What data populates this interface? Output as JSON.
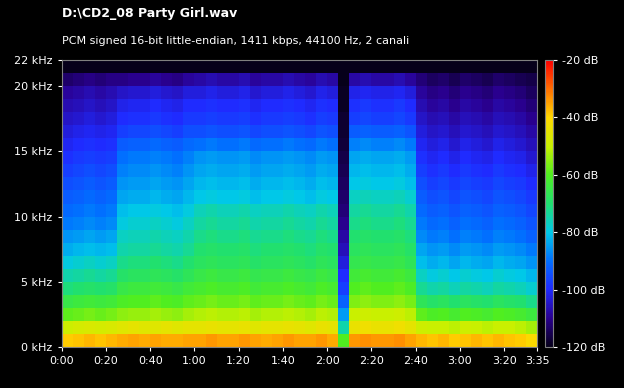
{
  "chart_data": {
    "type": "heatmap",
    "title": "D:\\CD2_08 Party Girl.wav",
    "subtitle": "PCM signed 16-bit little-endian, 1411 kbps, 44100 Hz, 2 canali",
    "xlim": [
      0,
      215
    ],
    "ylim": [
      0,
      22
    ],
    "xticks": [
      {
        "value": 0,
        "label": "0:00"
      },
      {
        "value": 20,
        "label": "0:20"
      },
      {
        "value": 40,
        "label": "0:40"
      },
      {
        "value": 60,
        "label": "1:00"
      },
      {
        "value": 80,
        "label": "1:20"
      },
      {
        "value": 100,
        "label": "1:40"
      },
      {
        "value": 120,
        "label": "2:00"
      },
      {
        "value": 140,
        "label": "2:20"
      },
      {
        "value": 160,
        "label": "2:40"
      },
      {
        "value": 180,
        "label": "3:00"
      },
      {
        "value": 200,
        "label": "3:20"
      },
      {
        "value": 215,
        "label": "3:35"
      }
    ],
    "yticks": [
      {
        "value": 0,
        "label": "0 kHz"
      },
      {
        "value": 5,
        "label": "5 kHz"
      },
      {
        "value": 10,
        "label": "10 kHz"
      },
      {
        "value": 15,
        "label": "15 kHz"
      },
      {
        "value": 20,
        "label": "20 kHz"
      },
      {
        "value": 22,
        "label": "22 kHz"
      }
    ],
    "x_bins": [
      0,
      5,
      10,
      15,
      20,
      25,
      30,
      35,
      40,
      45,
      50,
      55,
      60,
      65,
      70,
      75,
      80,
      85,
      90,
      95,
      100,
      105,
      110,
      115,
      120,
      125,
      130,
      135,
      140,
      145,
      150,
      155,
      160,
      165,
      170,
      175,
      180,
      185,
      190,
      195,
      200,
      205,
      210,
      215
    ],
    "y_bins": [
      0,
      1,
      2,
      3,
      4,
      5,
      6,
      7,
      8,
      9,
      10,
      11,
      12,
      13,
      14,
      15,
      16,
      17,
      18,
      19,
      20,
      21,
      22
    ],
    "colorbar": {
      "range": [
        -120,
        -20
      ],
      "ticks": [
        {
          "value": -20,
          "label": "-20 dB"
        },
        {
          "value": -40,
          "label": "-40 dB"
        },
        {
          "value": -60,
          "label": "-60 dB"
        },
        {
          "value": -80,
          "label": "-80 dB"
        },
        {
          "value": -100,
          "label": "-100 dB"
        },
        {
          "value": -120,
          "label": "-120 dB"
        }
      ]
    },
    "cells": [
      [
        -39,
        -38,
        -37,
        -38,
        -37,
        -36,
        -35,
        -36,
        -35,
        -36,
        -36,
        -35,
        -35,
        -34,
        -35,
        -35,
        -34,
        -35,
        -36,
        -35,
        -34,
        -35,
        -35,
        -34,
        -36,
        -60,
        -34,
        -33,
        -34,
        -34,
        -33,
        -35,
        -37,
        -38,
        -37,
        -39,
        -38,
        -37,
        -38,
        -37,
        -38,
        -39,
        -41
      ],
      [
        -49,
        -48,
        -47,
        -48,
        -47,
        -46,
        -45,
        -46,
        -46,
        -45,
        -46,
        -45,
        -45,
        -44,
        -45,
        -45,
        -44,
        -46,
        -45,
        -45,
        -44,
        -45,
        -46,
        -44,
        -45,
        -75,
        -44,
        -43,
        -44,
        -44,
        -43,
        -45,
        -49,
        -50,
        -50,
        -51,
        -49,
        -50,
        -51,
        -50,
        -50,
        -51,
        -53
      ],
      [
        -59,
        -58,
        -57,
        -58,
        -57,
        -55,
        -54,
        -54,
        -53,
        -54,
        -55,
        -53,
        -52,
        -51,
        -52,
        -52,
        -51,
        -53,
        -52,
        -52,
        -51,
        -52,
        -53,
        -51,
        -52,
        -85,
        -50,
        -49,
        -50,
        -50,
        -49,
        -51,
        -59,
        -61,
        -60,
        -62,
        -60,
        -61,
        -62,
        -60,
        -61,
        -62,
        -64
      ],
      [
        -65,
        -64,
        -63,
        -64,
        -63,
        -61,
        -60,
        -60,
        -59,
        -60,
        -61,
        -59,
        -58,
        -57,
        -58,
        -58,
        -57,
        -59,
        -58,
        -58,
        -57,
        -58,
        -59,
        -57,
        -58,
        -92,
        -56,
        -55,
        -56,
        -56,
        -55,
        -57,
        -67,
        -69,
        -68,
        -70,
        -68,
        -69,
        -70,
        -68,
        -69,
        -70,
        -72
      ],
      [
        -71,
        -70,
        -69,
        -70,
        -69,
        -65,
        -64,
        -64,
        -63,
        -64,
        -65,
        -63,
        -62,
        -61,
        -62,
        -62,
        -61,
        -63,
        -62,
        -62,
        -61,
        -62,
        -63,
        -61,
        -62,
        -97,
        -60,
        -59,
        -60,
        -60,
        -59,
        -61,
        -73,
        -75,
        -74,
        -76,
        -74,
        -75,
        -76,
        -74,
        -75,
        -76,
        -78
      ],
      [
        -75,
        -74,
        -73,
        -74,
        -73,
        -69,
        -68,
        -68,
        -67,
        -68,
        -69,
        -67,
        -65,
        -64,
        -65,
        -65,
        -64,
        -66,
        -65,
        -65,
        -64,
        -65,
        -66,
        -64,
        -65,
        -100,
        -63,
        -62,
        -63,
        -63,
        -62,
        -64,
        -77,
        -79,
        -78,
        -80,
        -78,
        -79,
        -80,
        -78,
        -79,
        -80,
        -82
      ],
      [
        -79,
        -78,
        -77,
        -78,
        -77,
        -72,
        -71,
        -71,
        -70,
        -71,
        -72,
        -70,
        -68,
        -67,
        -68,
        -68,
        -67,
        -69,
        -68,
        -68,
        -67,
        -68,
        -69,
        -67,
        -68,
        -103,
        -66,
        -65,
        -66,
        -66,
        -65,
        -67,
        -81,
        -83,
        -82,
        -84,
        -82,
        -83,
        -84,
        -82,
        -83,
        -84,
        -86
      ],
      [
        -83,
        -82,
        -81,
        -82,
        -81,
        -75,
        -74,
        -74,
        -73,
        -74,
        -75,
        -73,
        -70,
        -69,
        -70,
        -70,
        -69,
        -71,
        -70,
        -70,
        -69,
        -70,
        -71,
        -69,
        -70,
        -106,
        -68,
        -67,
        -68,
        -68,
        -67,
        -69,
        -84,
        -86,
        -85,
        -87,
        -85,
        -86,
        -87,
        -85,
        -86,
        -87,
        -89
      ],
      [
        -86,
        -85,
        -84,
        -85,
        -84,
        -77,
        -76,
        -76,
        -75,
        -76,
        -77,
        -75,
        -72,
        -71,
        -72,
        -72,
        -71,
        -73,
        -72,
        -72,
        -71,
        -72,
        -73,
        -71,
        -72,
        -108,
        -70,
        -69,
        -70,
        -70,
        -69,
        -71,
        -87,
        -89,
        -88,
        -90,
        -88,
        -89,
        -90,
        -88,
        -89,
        -90,
        -92
      ],
      [
        -89,
        -88,
        -87,
        -88,
        -87,
        -79,
        -78,
        -78,
        -77,
        -78,
        -79,
        -77,
        -74,
        -73,
        -74,
        -74,
        -73,
        -75,
        -74,
        -74,
        -73,
        -74,
        -75,
        -73,
        -74,
        -110,
        -72,
        -71,
        -72,
        -72,
        -71,
        -73,
        -89,
        -91,
        -90,
        -92,
        -90,
        -91,
        -92,
        -90,
        -91,
        -92,
        -94
      ],
      [
        -91,
        -90,
        -89,
        -90,
        -89,
        -81,
        -80,
        -80,
        -79,
        -80,
        -81,
        -79,
        -76,
        -75,
        -76,
        -76,
        -75,
        -77,
        -76,
        -76,
        -75,
        -76,
        -77,
        -75,
        -76,
        -112,
        -74,
        -73,
        -74,
        -74,
        -73,
        -75,
        -91,
        -93,
        -92,
        -94,
        -92,
        -93,
        -94,
        -92,
        -93,
        -94,
        -96
      ],
      [
        -93,
        -92,
        -91,
        -92,
        -91,
        -84,
        -83,
        -83,
        -82,
        -83,
        -84,
        -82,
        -80,
        -79,
        -80,
        -80,
        -79,
        -81,
        -80,
        -80,
        -79,
        -80,
        -81,
        -79,
        -80,
        -113,
        -77,
        -76,
        -77,
        -77,
        -76,
        -78,
        -93,
        -95,
        -94,
        -96,
        -94,
        -95,
        -96,
        -94,
        -95,
        -96,
        -98
      ],
      [
        -95,
        -94,
        -93,
        -94,
        -93,
        -86,
        -85,
        -85,
        -84,
        -85,
        -86,
        -84,
        -82,
        -81,
        -82,
        -82,
        -81,
        -83,
        -82,
        -82,
        -81,
        -82,
        -83,
        -81,
        -82,
        -114,
        -80,
        -79,
        -80,
        -80,
        -79,
        -81,
        -95,
        -97,
        -96,
        -98,
        -96,
        -97,
        -98,
        -96,
        -97,
        -98,
        -100
      ],
      [
        -97,
        -96,
        -95,
        -96,
        -95,
        -88,
        -87,
        -87,
        -86,
        -87,
        -88,
        -86,
        -84,
        -83,
        -84,
        -84,
        -83,
        -85,
        -84,
        -84,
        -83,
        -84,
        -85,
        -83,
        -84,
        -115,
        -82,
        -81,
        -82,
        -82,
        -81,
        -83,
        -97,
        -99,
        -98,
        -100,
        -98,
        -99,
        -100,
        -98,
        -99,
        -100,
        -102
      ],
      [
        -99,
        -98,
        -97,
        -98,
        -97,
        -90,
        -89,
        -89,
        -88,
        -89,
        -90,
        -88,
        -86,
        -85,
        -86,
        -86,
        -85,
        -87,
        -86,
        -86,
        -85,
        -86,
        -87,
        -85,
        -86,
        -116,
        -84,
        -83,
        -84,
        -84,
        -83,
        -85,
        -99,
        -101,
        -100,
        -102,
        -100,
        -101,
        -102,
        -100,
        -101,
        -102,
        -104
      ],
      [
        -101,
        -100,
        -99,
        -100,
        -99,
        -93,
        -92,
        -92,
        -91,
        -92,
        -93,
        -91,
        -90,
        -89,
        -90,
        -90,
        -89,
        -91,
        -90,
        -90,
        -89,
        -90,
        -91,
        -89,
        -90,
        -117,
        -88,
        -87,
        -88,
        -88,
        -87,
        -89,
        -101,
        -103,
        -102,
        -104,
        -102,
        -103,
        -104,
        -102,
        -103,
        -104,
        -106
      ],
      [
        -103,
        -102,
        -101,
        -102,
        -101,
        -97,
        -96,
        -96,
        -95,
        -96,
        -97,
        -95,
        -95,
        -94,
        -95,
        -95,
        -94,
        -96,
        -95,
        -95,
        -94,
        -95,
        -96,
        -94,
        -95,
        -118,
        -93,
        -92,
        -93,
        -93,
        -92,
        -94,
        -103,
        -105,
        -104,
        -106,
        -104,
        -105,
        -106,
        -104,
        -105,
        -106,
        -108
      ],
      [
        -105,
        -104,
        -103,
        -104,
        -103,
        -100,
        -99,
        -99,
        -98,
        -99,
        -100,
        -98,
        -98,
        -97,
        -98,
        -98,
        -97,
        -99,
        -98,
        -98,
        -97,
        -98,
        -99,
        -97,
        -98,
        -118,
        -97,
        -96,
        -97,
        -97,
        -96,
        -98,
        -105,
        -107,
        -106,
        -108,
        -106,
        -107,
        -108,
        -106,
        -107,
        -108,
        -110
      ],
      [
        -107,
        -106,
        -105,
        -106,
        -105,
        -102,
        -101,
        -101,
        -100,
        -101,
        -102,
        -100,
        -100,
        -99,
        -100,
        -100,
        -99,
        -101,
        -100,
        -100,
        -99,
        -100,
        -101,
        -99,
        -100,
        -119,
        -99,
        -98,
        -99,
        -99,
        -98,
        -100,
        -107,
        -109,
        -108,
        -110,
        -108,
        -109,
        -110,
        -108,
        -109,
        -110,
        -112
      ],
      [
        -109,
        -108,
        -107,
        -108,
        -107,
        -105,
        -104,
        -104,
        -103,
        -104,
        -105,
        -103,
        -103,
        -102,
        -103,
        -103,
        -102,
        -104,
        -103,
        -103,
        -102,
        -103,
        -104,
        -102,
        -103,
        -119,
        -102,
        -101,
        -102,
        -102,
        -101,
        -103,
        -109,
        -111,
        -110,
        -112,
        -110,
        -111,
        -112,
        -110,
        -111,
        -112,
        -114
      ],
      [
        -113,
        -112,
        -111,
        -112,
        -111,
        -111,
        -110,
        -110,
        -109,
        -110,
        -111,
        -109,
        -108,
        -107,
        -108,
        -108,
        -107,
        -109,
        -108,
        -108,
        -107,
        -108,
        -109,
        -107,
        -108,
        -120,
        -108,
        -107,
        -108,
        -108,
        -107,
        -109,
        -112,
        -114,
        -113,
        -115,
        -113,
        -114,
        -115,
        -113,
        -114,
        -115,
        -116
      ],
      [
        -120,
        -120,
        -120,
        -120,
        -120,
        -120,
        -120,
        -120,
        -120,
        -120,
        -120,
        -120,
        -120,
        -120,
        -120,
        -120,
        -120,
        -120,
        -120,
        -120,
        -120,
        -120,
        -120,
        -120,
        -120,
        -120,
        -120,
        -120,
        -120,
        -120,
        -120,
        -120,
        -120,
        -120,
        -120,
        -120,
        -120,
        -120,
        -120,
        -120,
        -120,
        -120,
        -120
      ]
    ]
  }
}
